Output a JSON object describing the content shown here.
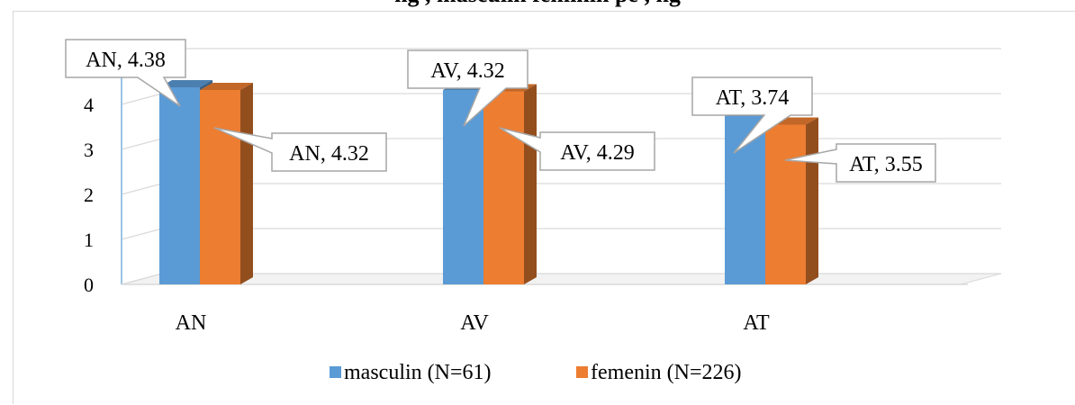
{
  "title": "ng                   , masculin     feminin  pe           , ng",
  "chart_data": {
    "type": "bar",
    "categories": [
      "AN",
      "AV",
      "AT"
    ],
    "series": [
      {
        "name": "masculin (N=61)",
        "color": "#5B9BD5",
        "values": [
          4.38,
          4.32,
          3.74
        ]
      },
      {
        "name": "femenin (N=226)",
        "color": "#ED7D31",
        "values": [
          4.32,
          4.29,
          3.55
        ]
      }
    ],
    "data_labels": [
      [
        "AN, 4.38",
        "AV, 4.32",
        "AT, 3.74"
      ],
      [
        "AN, 4.32",
        "AV, 4.29",
        "AT, 3.55"
      ]
    ],
    "yticks": [
      "0",
      "1",
      "2",
      "3",
      "4",
      "5"
    ],
    "ylim": [
      0,
      5
    ],
    "grid": true,
    "legend_position": "bottom",
    "style": "3d-clustered-column"
  }
}
